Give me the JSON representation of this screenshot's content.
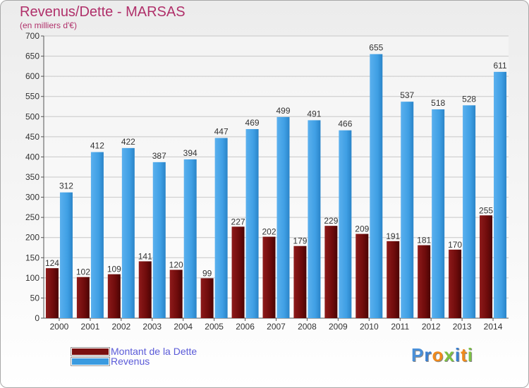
{
  "title": "Revenus/Dette - MARSAS",
  "subtitle": "(en milliers d'€)",
  "colors": {
    "debt": "#7a1010",
    "revenue": "#3a9be0",
    "title": "#b0306a",
    "legend_text": "#5a5ad8"
  },
  "legend": {
    "items": [
      {
        "label": "Montant de la Dette",
        "color": "#7a1010"
      },
      {
        "label": "Revenus",
        "color": "#3a9be0"
      }
    ]
  },
  "logo": {
    "letters": [
      "P",
      "r",
      "o",
      "x",
      "i",
      "t",
      "i"
    ],
    "colors": [
      "#4a90d9",
      "#3a7fd0",
      "#f08a1c",
      "#7cc143",
      "#3a7fd0",
      "#f08a1c",
      "#7cc143"
    ]
  },
  "chart_data": {
    "type": "bar",
    "categories": [
      "2000",
      "2001",
      "2002",
      "2003",
      "2004",
      "2005",
      "2006",
      "2007",
      "2008",
      "2009",
      "2010",
      "2011",
      "2012",
      "2013",
      "2014"
    ],
    "series": [
      {
        "name": "Montant de la Dette",
        "values": [
          124,
          102,
          109,
          141,
          120,
          99,
          227,
          202,
          179,
          229,
          209,
          191,
          181,
          170,
          255
        ]
      },
      {
        "name": "Revenus",
        "values": [
          312,
          412,
          422,
          387,
          394,
          447,
          469,
          499,
          491,
          466,
          655,
          537,
          518,
          528,
          611
        ]
      }
    ],
    "ylim": [
      0,
      700
    ],
    "yticks": [
      0,
      50,
      100,
      150,
      200,
      250,
      300,
      350,
      400,
      450,
      500,
      550,
      600,
      650,
      700
    ],
    "grid": true,
    "legend_position": "bottom-left"
  }
}
